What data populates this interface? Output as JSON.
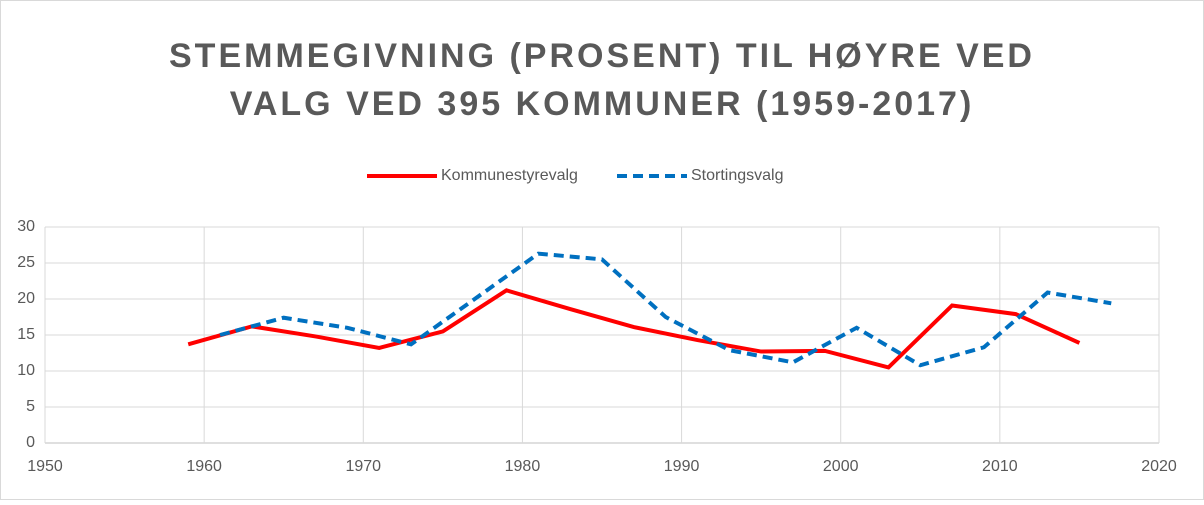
{
  "chart_data": {
    "type": "line",
    "title": [
      "STEMMEGIVNING (PROSENT) TIL HØYRE VED",
      "VALG VED 395 KOMMUNER (1959-2017)"
    ],
    "series": [
      {
        "name": "Kommunestyrevalg",
        "color": "#ff0000",
        "dash": false,
        "x": [
          1959,
          1963,
          1967,
          1971,
          1975,
          1979,
          1983,
          1987,
          1991,
          1995,
          1999,
          2003,
          2007,
          2011,
          2015
        ],
        "values": [
          13.7,
          16.2,
          14.8,
          13.2,
          15.5,
          21.2,
          18.6,
          16.1,
          14.3,
          12.7,
          12.8,
          10.5,
          19.1,
          17.9,
          13.9
        ]
      },
      {
        "name": "Stortingsvalg",
        "color": "#0070c0",
        "dash": true,
        "x": [
          1961,
          1965,
          1969,
          1973,
          1977,
          1981,
          1985,
          1989,
          1993,
          1997,
          2001,
          2005,
          2009,
          2013,
          2017
        ],
        "values": [
          15.0,
          17.4,
          16.0,
          13.7,
          20.0,
          26.3,
          25.5,
          17.5,
          12.9,
          11.2,
          16.0,
          10.8,
          13.3,
          20.9,
          19.4
        ]
      }
    ],
    "xlim": [
      1950,
      2020
    ],
    "xticks": [
      1950,
      1960,
      1970,
      1980,
      1990,
      2000,
      2010,
      2020
    ],
    "ylim": [
      0,
      30
    ],
    "yticks": [
      0,
      5,
      10,
      15,
      20,
      25,
      30
    ],
    "grid": true
  }
}
